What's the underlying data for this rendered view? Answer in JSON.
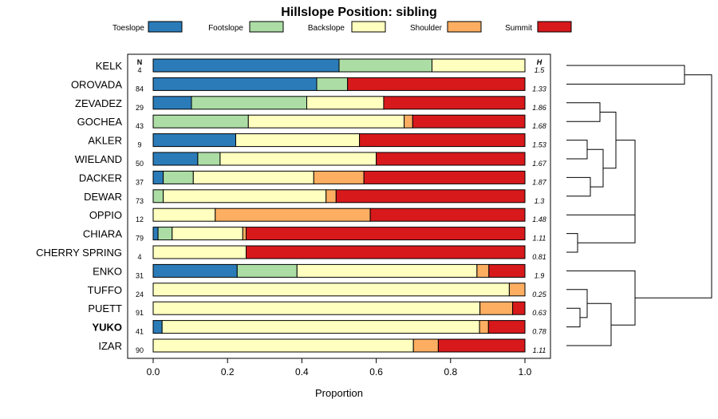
{
  "chart_data": {
    "type": "bar",
    "orientation": "horizontal-stacked",
    "title": "Hillslope Position: sibling",
    "xlabel": "Proportion",
    "xlim": [
      0,
      1
    ],
    "xticks": [
      "0.0",
      "0.2",
      "0.4",
      "0.6",
      "0.8",
      "1.0"
    ],
    "n_header": "N",
    "h_header": "H",
    "legend": [
      {
        "name": "Toeslope",
        "color": "#2b7bb9"
      },
      {
        "name": "Footslope",
        "color": "#abdda4"
      },
      {
        "name": "Backslope",
        "color": "#ffffbf"
      },
      {
        "name": "Shoulder",
        "color": "#fdae61"
      },
      {
        "name": "Summit",
        "color": "#d7191c"
      }
    ],
    "categories": [
      {
        "name": "KELK",
        "n": "4",
        "h": "1.5",
        "values": [
          0.5,
          0.25,
          0.25,
          0,
          0
        ]
      },
      {
        "name": "OROVADA",
        "n": "84",
        "h": "1.33",
        "values": [
          0.44,
          0.083,
          0,
          0,
          0.477
        ]
      },
      {
        "name": "ZEVADEZ",
        "n": "29",
        "h": "1.86",
        "values": [
          0.103,
          0.31,
          0.207,
          0,
          0.38
        ]
      },
      {
        "name": "GOCHEA",
        "n": "43",
        "h": "1.68",
        "values": [
          0,
          0.256,
          0.419,
          0.023,
          0.302
        ]
      },
      {
        "name": "AKLER",
        "n": "9",
        "h": "1.53",
        "values": [
          0.222,
          0,
          0.333,
          0,
          0.445
        ]
      },
      {
        "name": "WIELAND",
        "n": "50",
        "h": "1.67",
        "values": [
          0.12,
          0.06,
          0.42,
          0,
          0.4
        ]
      },
      {
        "name": "DACKER",
        "n": "37",
        "h": "1.87",
        "values": [
          0.027,
          0.081,
          0.324,
          0.135,
          0.433
        ]
      },
      {
        "name": "DEWAR",
        "n": "73",
        "h": "1.3",
        "values": [
          0,
          0.027,
          0.438,
          0.027,
          0.508
        ]
      },
      {
        "name": "OPPIO",
        "n": "12",
        "h": "1.48",
        "values": [
          0,
          0,
          0.167,
          0.417,
          0.416
        ]
      },
      {
        "name": "CHIARA",
        "n": "79",
        "h": "1.11",
        "values": [
          0.013,
          0.038,
          0.19,
          0.009,
          0.75
        ]
      },
      {
        "name": "CHERRY SPRING",
        "n": "4",
        "h": "0.81",
        "values": [
          0,
          0,
          0.25,
          0,
          0.75
        ]
      },
      {
        "name": "ENKO",
        "n": "31",
        "h": "1.9",
        "values": [
          0.226,
          0.161,
          0.484,
          0.032,
          0.097
        ]
      },
      {
        "name": "TUFFO",
        "n": "24",
        "h": "0.25",
        "values": [
          0,
          0,
          0.958,
          0.042,
          0
        ]
      },
      {
        "name": "PUETT",
        "n": "91",
        "h": "0.63",
        "values": [
          0,
          0,
          0.879,
          0.088,
          0.033
        ]
      },
      {
        "name": "YUKO",
        "n": "41",
        "h": "0.78",
        "values": [
          0.024,
          0,
          0.854,
          0.024,
          0.098
        ],
        "highlight": true
      },
      {
        "name": "IZAR",
        "n": "90",
        "h": "1.11",
        "values": [
          0,
          0,
          0.7,
          0.067,
          0.233
        ]
      }
    ],
    "dendrogram": "hierarchical-clustering"
  }
}
